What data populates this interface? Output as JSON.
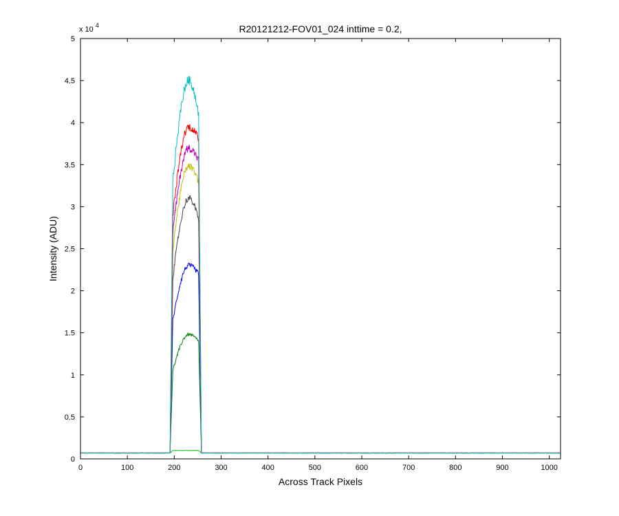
{
  "chart_data": {
    "type": "line",
    "title": "R20121212-FOV01_024 inttime = 0.2,",
    "xlabel": "Across Track Pixels",
    "ylabel": "Intensity (ADU)",
    "y_exponent_label": {
      "base": "x 10",
      "exp": "4"
    },
    "xlim": [
      0,
      1024
    ],
    "ylim": [
      0,
      50000
    ],
    "x_ticks": [
      0,
      100,
      200,
      300,
      400,
      500,
      600,
      700,
      800,
      900,
      1000
    ],
    "x_tick_labels": [
      "0",
      "100",
      "200",
      "300",
      "400",
      "500",
      "600",
      "700",
      "800",
      "900",
      "1000"
    ],
    "y_ticks": [
      0,
      5000,
      10000,
      15000,
      20000,
      25000,
      30000,
      35000,
      40000,
      45000,
      50000
    ],
    "y_tick_labels": [
      "0",
      "0.5",
      "1",
      "1.5",
      "2",
      "2.5",
      "3",
      "3.5",
      "4",
      "4.5",
      "5"
    ],
    "grid": false,
    "legend": "none",
    "profile": {
      "baseline": 700,
      "rise_start": 191,
      "rise_end": 197,
      "fall_start": 252,
      "fall_end": 258,
      "peak_x": 231
    },
    "series": [
      {
        "color": "#00bfbf",
        "edge_level": 33000,
        "peak": 45000,
        "right_edge": 41000
      },
      {
        "color": "#ff0000",
        "edge_level": 29000,
        "peak": 39500,
        "right_edge": 38000
      },
      {
        "color": "#bf00bf",
        "edge_level": 27000,
        "peak": 37000,
        "right_edge": 35500
      },
      {
        "color": "#bfbf00",
        "edge_level": 25000,
        "peak": 34800,
        "right_edge": 33000
      },
      {
        "color": "#404040",
        "edge_level": 21500,
        "peak": 31000,
        "right_edge": 28500
      },
      {
        "color": "#0000ff",
        "edge_level": 16500,
        "peak": 23000,
        "right_edge": 22000
      },
      {
        "color": "#008000",
        "edge_level": 10500,
        "peak": 14800,
        "right_edge": 14000
      },
      {
        "color": "#00bf00",
        "edge_level": 1000,
        "peak": 1000,
        "right_edge": 1000
      }
    ]
  }
}
